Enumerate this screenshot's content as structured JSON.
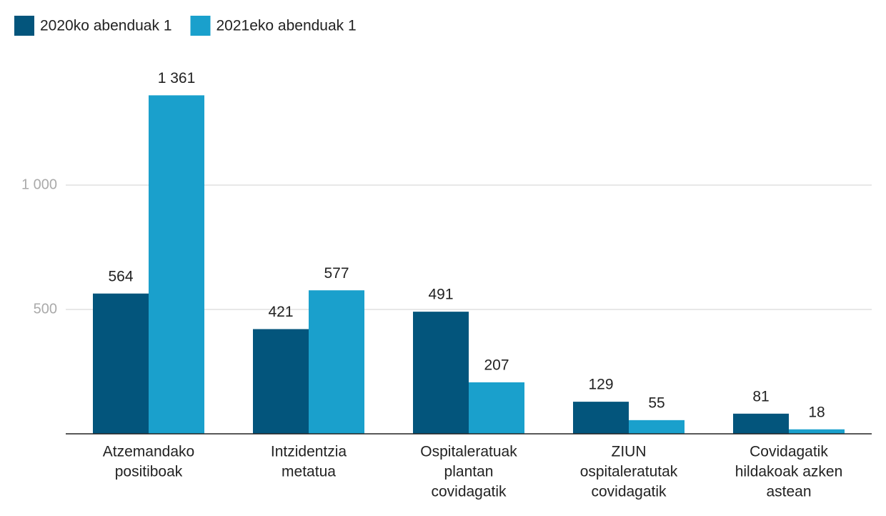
{
  "chart_data": {
    "type": "bar",
    "categories": [
      [
        "Atzemandako",
        "positiboak"
      ],
      [
        "Intzidentzia",
        "metatua"
      ],
      [
        "Ospitaleratuak",
        "plantan",
        "covidagatik"
      ],
      [
        "ZIUN",
        "ospitaleratutak",
        "covidagatik"
      ],
      [
        "Covidagatik",
        "hildakoak azken",
        "astean"
      ]
    ],
    "series": [
      {
        "name": "2020ko abenduak 1",
        "color": "#03557c",
        "values": [
          564,
          421,
          491,
          129,
          81
        ]
      },
      {
        "name": "2021eko abenduak 1",
        "color": "#1aa0cc",
        "values": [
          1361,
          577,
          207,
          55,
          18
        ],
        "value_labels": [
          "1 361",
          "577",
          "207",
          "55",
          "18"
        ]
      }
    ],
    "ylim": [
      0,
      1500
    ],
    "yticks": [
      500,
      {
        "value": 1000,
        "label": "1 000"
      }
    ],
    "grid": true,
    "legend": "top-left"
  }
}
